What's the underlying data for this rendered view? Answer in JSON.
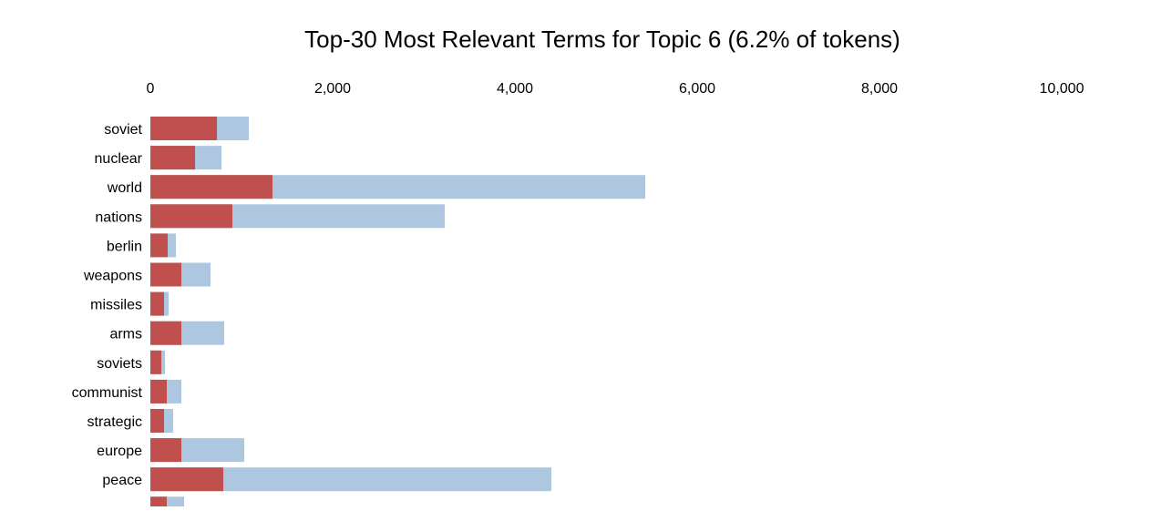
{
  "chart_data": {
    "type": "bar",
    "orientation": "horizontal",
    "title": "Top-30 Most Relevant Terms for Topic 6 (6.2% of tokens)",
    "xlabel": "",
    "ylabel": "",
    "xlim": [
      0,
      10000
    ],
    "x_ticks": [
      0,
      2000,
      4000,
      6000,
      8000,
      10000
    ],
    "x_tick_labels": [
      "0",
      "2,000",
      "4,000",
      "6,000",
      "8,000",
      "10,000"
    ],
    "x_axis_position": "top",
    "grid": false,
    "legend": "none",
    "categories": [
      "soviet",
      "nuclear",
      "world",
      "nations",
      "berlin",
      "weapons",
      "missiles",
      "arms",
      "soviets",
      "communist",
      "strategic",
      "europe",
      "peace",
      ""
    ],
    "series": [
      {
        "values": [
          1080,
          780,
          5430,
          3230,
          280,
          660,
          200,
          810,
          160,
          340,
          250,
          1030,
          4400,
          370
        ]
      },
      {
        "values": [
          730,
          490,
          1340,
          900,
          190,
          340,
          150,
          340,
          120,
          180,
          150,
          340,
          800,
          180
        ]
      }
    ],
    "colors": {
      "overall": "#aec7e0",
      "topic": "#c0504d"
    }
  }
}
